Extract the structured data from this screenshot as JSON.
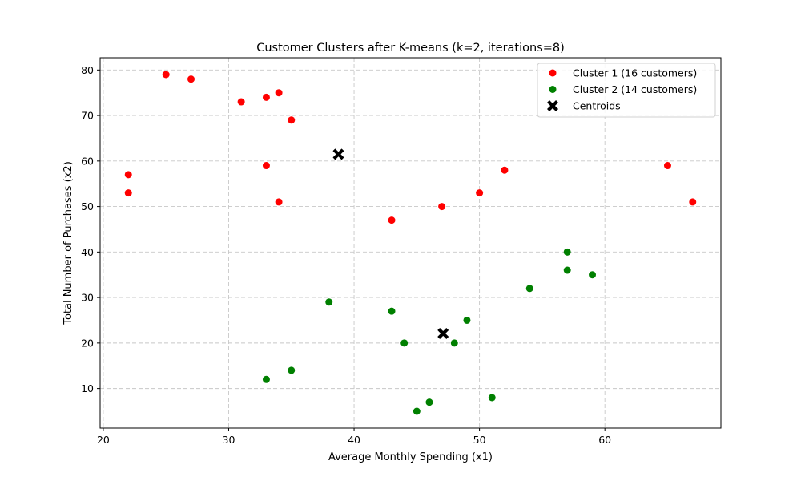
{
  "chart_data": {
    "type": "scatter",
    "title": "Customer Clusters after K-means (k=2, iterations=8)",
    "xlabel": "Average Monthly Spending (x1)",
    "ylabel": "Total Number of Purchases (x2)",
    "xlim": [
      19.75,
      69.25
    ],
    "ylim": [
      1.3,
      82.7
    ],
    "xticks": [
      20,
      30,
      40,
      50,
      60
    ],
    "yticks": [
      10,
      20,
      30,
      40,
      50,
      60,
      70,
      80
    ],
    "grid": true,
    "legend_position": "top-right",
    "series": [
      {
        "name": "Cluster 1 (16 customers)",
        "color": "#ff0000",
        "marker": "circle",
        "points": [
          [
            25,
            79
          ],
          [
            27,
            78
          ],
          [
            31,
            73
          ],
          [
            33,
            74
          ],
          [
            34,
            75
          ],
          [
            35,
            69
          ],
          [
            22,
            57
          ],
          [
            22,
            53
          ],
          [
            33,
            59
          ],
          [
            34,
            51
          ],
          [
            43,
            47
          ],
          [
            47,
            50
          ],
          [
            50,
            53
          ],
          [
            52,
            58
          ],
          [
            65,
            59
          ],
          [
            67,
            51
          ]
        ]
      },
      {
        "name": "Cluster 2 (14 customers)",
        "color": "#008000",
        "marker": "circle",
        "points": [
          [
            57,
            40
          ],
          [
            57,
            36
          ],
          [
            59,
            35
          ],
          [
            54,
            32
          ],
          [
            38,
            29
          ],
          [
            43,
            27
          ],
          [
            49,
            25
          ],
          [
            44,
            20
          ],
          [
            48,
            20
          ],
          [
            35,
            14
          ],
          [
            33,
            12
          ],
          [
            46,
            7
          ],
          [
            45,
            5
          ],
          [
            51,
            8
          ]
        ]
      },
      {
        "name": "Centroids",
        "color": "#000000",
        "marker": "x",
        "points": [
          [
            38.75,
            61.5
          ],
          [
            47.1,
            22.1
          ]
        ]
      }
    ]
  }
}
